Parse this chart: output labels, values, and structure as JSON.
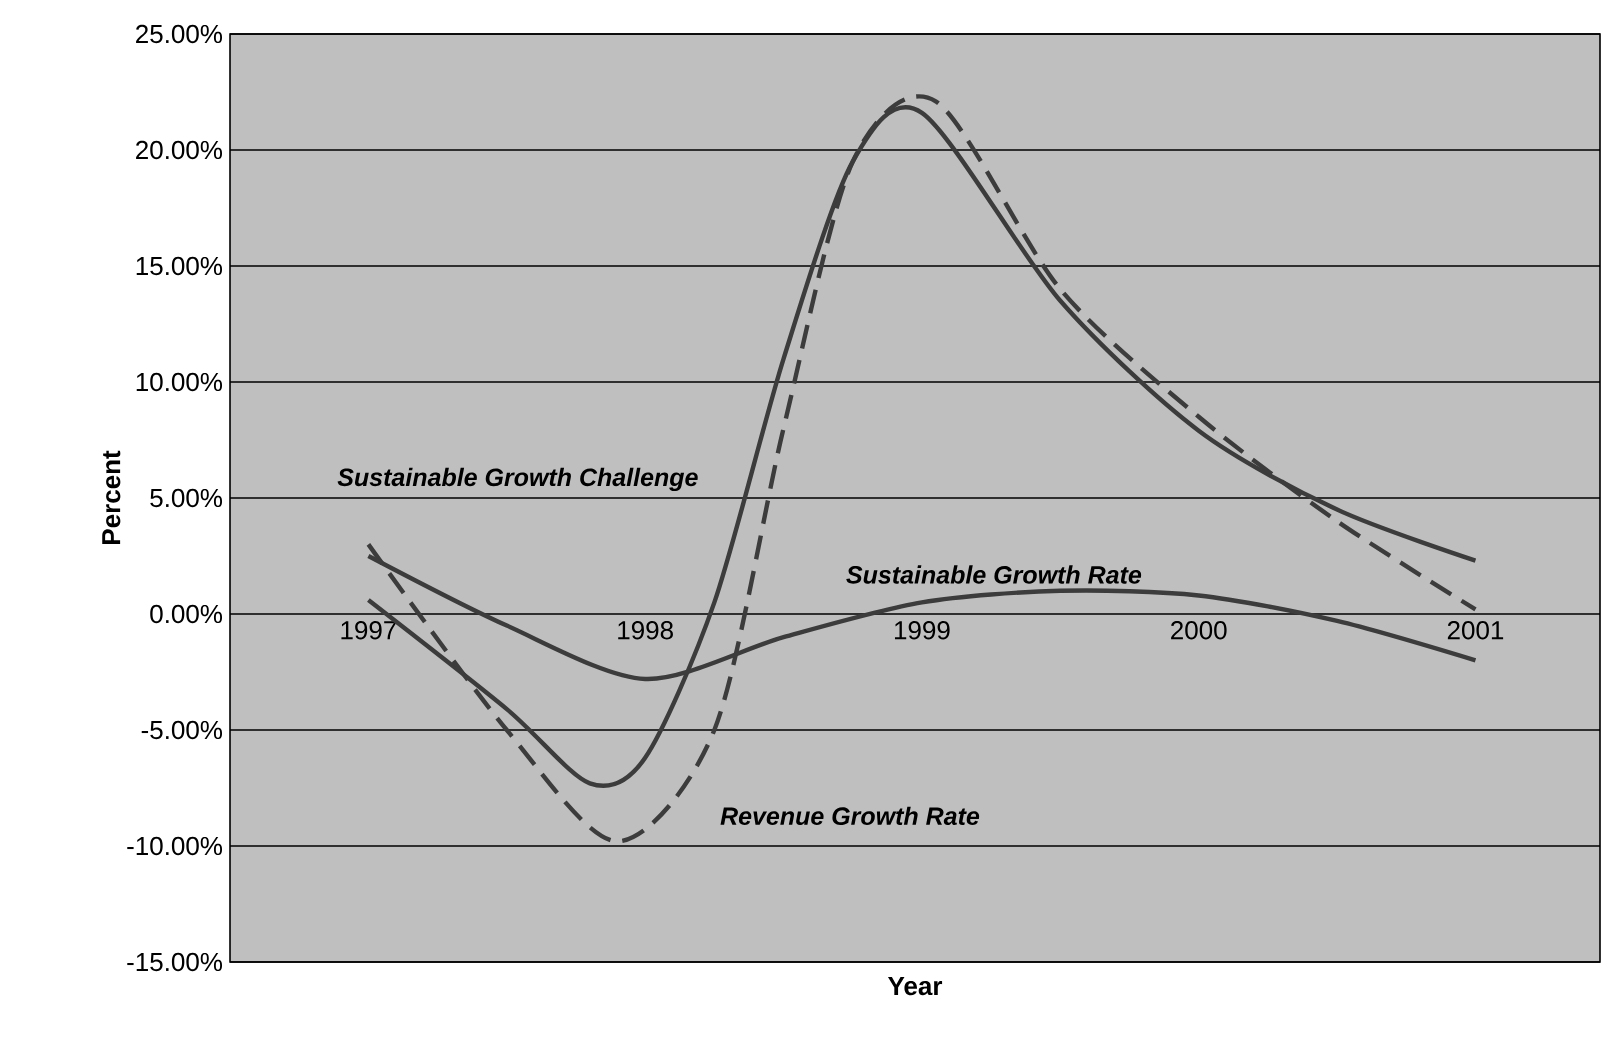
{
  "chart_data": {
    "type": "line",
    "xlabel": "Year",
    "ylabel": "Percent",
    "x": [
      1997,
      1997.5,
      1997.8,
      1998,
      1998.25,
      1998.5,
      1998.75,
      1999,
      1999.5,
      2000,
      2000.5,
      2001
    ],
    "series": [
      {
        "name": "Sustainable Growth Challenge",
        "color": "#3c3c3c",
        "line_style": "solid",
        "values": [
          0.6,
          -4.1,
          -7.3,
          -6.2,
          0.5,
          11,
          19.5,
          21.6,
          13.5,
          7.9,
          4.5,
          2.3
        ]
      },
      {
        "name": "Revenue Growth Rate",
        "color": "#3c3c3c",
        "line_style": "dashed",
        "x": [
          1997,
          1997.5,
          1997.9,
          1998.25,
          1998.5,
          1998.75,
          1999.05,
          1999.5,
          2000,
          2000.5,
          2001
        ],
        "values": [
          3,
          -5,
          -9.8,
          -5,
          8,
          19.5,
          22.1,
          14,
          8.5,
          4,
          0.2
        ]
      },
      {
        "name": "Sustainable Growth Rate",
        "color": "#3c3c3c",
        "line_style": "solid",
        "x": [
          1997,
          1997.5,
          1998,
          1998.5,
          1999,
          1999.5,
          2000,
          2000.5,
          2001
        ],
        "values": [
          2.5,
          -0.5,
          -2.8,
          -1,
          0.5,
          1,
          0.8,
          -0.3,
          -2
        ]
      }
    ],
    "xlim": [
      1996.5,
      2001.45
    ],
    "xticks": [
      1997,
      1998,
      1999,
      2000,
      2001
    ],
    "ylim": [
      -15,
      25
    ],
    "yticks": [
      {
        "value": -15,
        "label": "-15.00%"
      },
      {
        "value": -10,
        "label": "-10.00%"
      },
      {
        "value": -5,
        "label": "-5.00%"
      },
      {
        "value": 0,
        "label": "0.00%"
      },
      {
        "value": 5,
        "label": "5.00%"
      },
      {
        "value": 10,
        "label": "10.00%"
      },
      {
        "value": 15,
        "label": "15.00%"
      },
      {
        "value": 20,
        "label": "20.00%"
      },
      {
        "value": 25,
        "label": "25.00%"
      }
    ],
    "grid": "y"
  }
}
